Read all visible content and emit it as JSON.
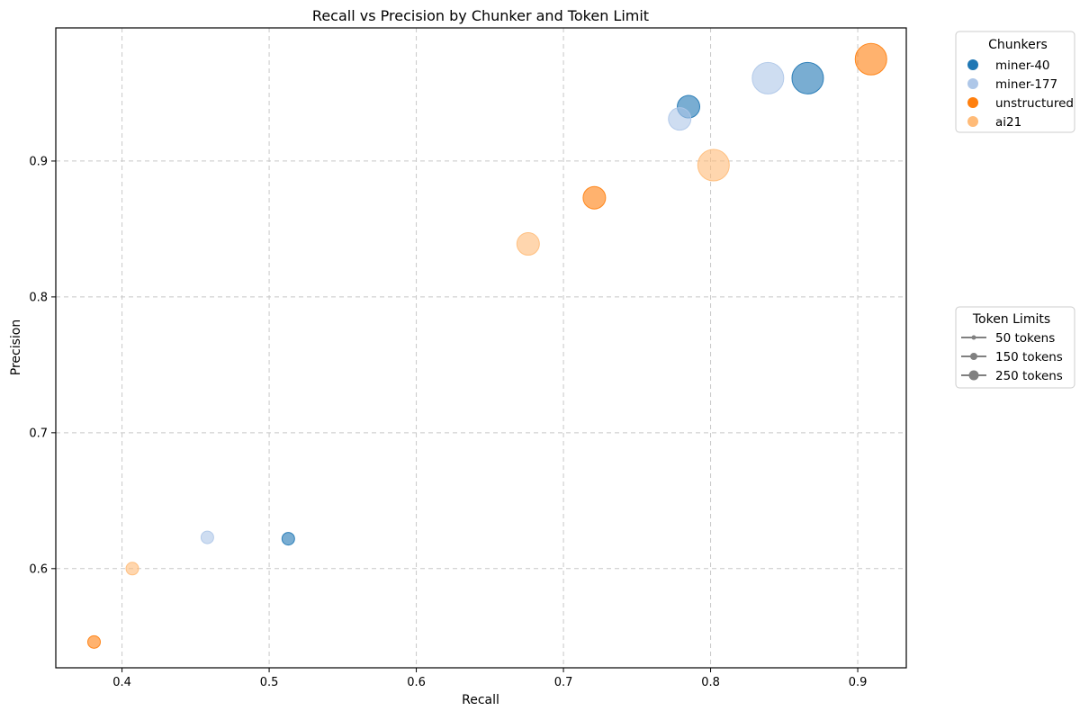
{
  "chart_data": {
    "type": "scatter",
    "title": "Recall vs Precision by Chunker and Token Limit",
    "xlabel": "Recall",
    "ylabel": "Precision",
    "xlim": [
      0.355,
      0.933
    ],
    "ylim": [
      0.527,
      0.998
    ],
    "xticks": [
      0.4,
      0.5,
      0.6,
      0.7,
      0.8,
      0.9
    ],
    "yticks": [
      0.6,
      0.7,
      0.8,
      0.9
    ],
    "grid": true,
    "series": [
      {
        "name": "miner-40",
        "color": "#1f77b4",
        "points": [
          {
            "x": 0.513,
            "y": 0.622,
            "tokens": 50
          },
          {
            "x": 0.785,
            "y": 0.94,
            "tokens": 150
          },
          {
            "x": 0.866,
            "y": 0.961,
            "tokens": 250
          }
        ]
      },
      {
        "name": "miner-177",
        "color": "#aec7e8",
        "points": [
          {
            "x": 0.458,
            "y": 0.623,
            "tokens": 50
          },
          {
            "x": 0.779,
            "y": 0.931,
            "tokens": 150
          },
          {
            "x": 0.839,
            "y": 0.961,
            "tokens": 250
          }
        ]
      },
      {
        "name": "unstructured",
        "color": "#ff7f0e",
        "points": [
          {
            "x": 0.381,
            "y": 0.546,
            "tokens": 50
          },
          {
            "x": 0.721,
            "y": 0.873,
            "tokens": 150
          },
          {
            "x": 0.909,
            "y": 0.975,
            "tokens": 250
          }
        ]
      },
      {
        "name": "ai21",
        "color": "#ffbb78",
        "points": [
          {
            "x": 0.407,
            "y": 0.6,
            "tokens": 50
          },
          {
            "x": 0.676,
            "y": 0.839,
            "tokens": 150
          },
          {
            "x": 0.802,
            "y": 0.897,
            "tokens": 250
          }
        ]
      }
    ],
    "legend_chunkers": {
      "title": "Chunkers",
      "placement": "outside-top-right",
      "entries": [
        "miner-40",
        "miner-177",
        "unstructured",
        "ai21"
      ]
    },
    "legend_tokens": {
      "title": "Token Limits",
      "placement": "outside-middle-right",
      "color": "#808080",
      "entries": [
        {
          "label": "50 tokens",
          "tokens": 50
        },
        {
          "label": "150 tokens",
          "tokens": 150
        },
        {
          "label": "250 tokens",
          "tokens": 250
        }
      ]
    }
  }
}
